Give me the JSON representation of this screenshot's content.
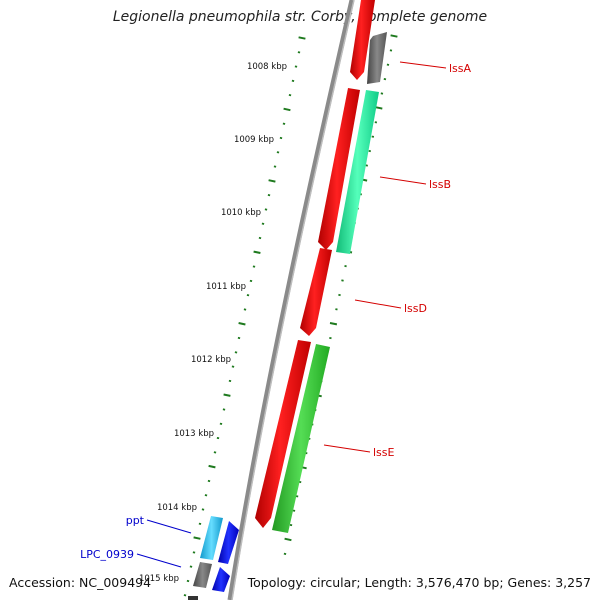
{
  "title": "Legionella pneumophila str. Corby, complete genome",
  "footer": {
    "accession": "Accession: NC_009494",
    "summary": "Topology: circular; Length: 3,576,470 bp; Genes: 3,257"
  },
  "colors": {
    "backbone": "#7a7a7a",
    "tick": "#1f7a1f",
    "label_red": "#d40000",
    "label_blue": "#0000cc",
    "gene_red": "#ff0000",
    "gene_gray": "#666666",
    "gene_teal": "#22ee99",
    "gene_green": "#33bb33",
    "gene_cyan": "#22bbee",
    "gene_blue": "#0000ee"
  },
  "ruler": {
    "labels": [
      "1008 kbp",
      "1009 kbp",
      "1010 kbp",
      "1011 kbp",
      "1012 kbp",
      "1013 kbp",
      "1014 kbp",
      "1015 kbp"
    ]
  },
  "gene_labels": [
    {
      "text": "lssA",
      "color": "label_red"
    },
    {
      "text": "lssB",
      "color": "label_red"
    },
    {
      "text": "lssD",
      "color": "label_red"
    },
    {
      "text": "lssE",
      "color": "label_red"
    },
    {
      "text": "ppt",
      "color": "label_blue"
    },
    {
      "text": "LPC_0939",
      "color": "label_blue"
    }
  ],
  "genes": [
    {
      "name": "lssA",
      "color": "gene_red",
      "strand": "forward"
    },
    {
      "name": "gray-1",
      "color": "gene_gray",
      "strand": "reverse"
    },
    {
      "name": "lssB",
      "color": "gene_red",
      "strand": "forward"
    },
    {
      "name": "teal-1",
      "color": "gene_teal",
      "strand": "reverse"
    },
    {
      "name": "lssD",
      "color": "gene_red",
      "strand": "forward"
    },
    {
      "name": "lssE",
      "color": "gene_red",
      "strand": "forward"
    },
    {
      "name": "green-1",
      "color": "gene_green",
      "strand": "reverse"
    },
    {
      "name": "ppt",
      "color": "gene_cyan",
      "strand": "forward"
    },
    {
      "name": "blue-1",
      "color": "gene_blue",
      "strand": "reverse"
    },
    {
      "name": "LPC_0939",
      "color": "gene_gray",
      "strand": "forward"
    },
    {
      "name": "blue-2",
      "color": "gene_blue",
      "strand": "reverse"
    }
  ]
}
